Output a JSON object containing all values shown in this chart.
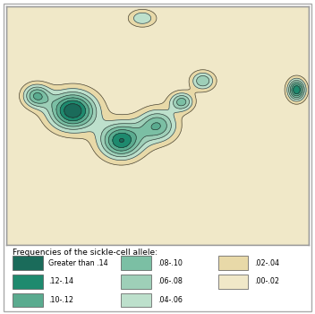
{
  "title": "Frequencies of the sickle-cell allele:",
  "legend_items": [
    {
      "label": "Greater than .14",
      "color": "#1a6b5a"
    },
    {
      "label": ".12-.14",
      "color": "#1e8a6e"
    },
    {
      "label": ".10-.12",
      "color": "#5aab8f"
    },
    {
      "label": ".08-.10",
      "color": "#7bbfa4"
    },
    {
      "label": ".06-.08",
      "color": "#9ecfb8"
    },
    {
      "label": ".04-.06",
      "color": "#bde0cc"
    },
    {
      "label": ".02-.04",
      "color": "#e8d9a8"
    },
    {
      "label": ".00-.02",
      "color": "#f0e8c8"
    }
  ],
  "ocean_color": "#a8c8d8",
  "land_base_color": "#e8d9a8",
  "border_color": "#333333",
  "background_color": "#a8c8d8",
  "map_border_color": "#999999",
  "figsize": [
    3.52,
    3.5
  ],
  "dpi": 100
}
